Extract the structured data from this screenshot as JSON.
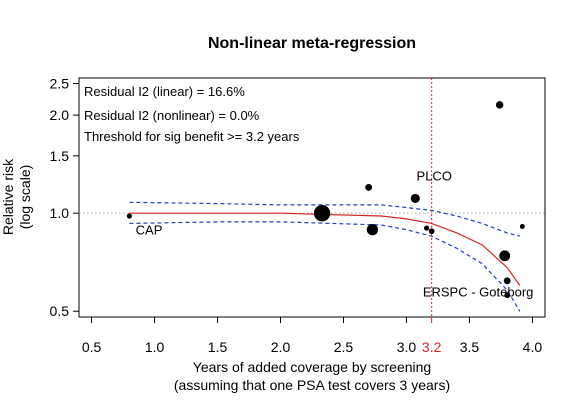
{
  "chart_data": {
    "type": "scatter",
    "title": "Non-linear meta-regression",
    "xlabel_lines": [
      "Years of added coverage by screening",
      "(assuming that one PSA test covers 3 years)"
    ],
    "ylabel_lines": [
      "Relative risk",
      "(log scale)"
    ],
    "y_scale": "log",
    "xlim": [
      0.4,
      4.1
    ],
    "ylim": [
      0.48,
      2.6
    ],
    "x_ticks": [
      {
        "value": 0.5,
        "label": "0.5"
      },
      {
        "value": 1.0,
        "label": "1.0"
      },
      {
        "value": 1.5,
        "label": "1.5"
      },
      {
        "value": 2.0,
        "label": "2.0"
      },
      {
        "value": 2.5,
        "label": "2.5"
      },
      {
        "value": 3.0,
        "label": "3.0"
      },
      {
        "value": 3.5,
        "label": "3.5"
      },
      {
        "value": 4.0,
        "label": "4.0"
      }
    ],
    "threshold_tick": {
      "value": 3.2,
      "label": "3.2",
      "color": "#d62728"
    },
    "y_ticks": [
      {
        "value": 0.5,
        "label": "0.5"
      },
      {
        "value": 1.0,
        "label": "1.0"
      },
      {
        "value": 1.5,
        "label": "1.5"
      },
      {
        "value": 2.0,
        "label": "2.0"
      },
      {
        "value": 2.5,
        "label": "2.5"
      }
    ],
    "reference_line": {
      "y": 1.0,
      "color": "#aaaaaa"
    },
    "threshold_line": {
      "x": 3.2,
      "color": "#d62728"
    },
    "annotations": [
      "Residual I2 (linear) = 16.6%",
      "Residual I2 (nonlinear) = 0.0%",
      "Threshold for sig benefit >= 3.2 years"
    ],
    "points": [
      {
        "x": 0.8,
        "y": 0.98,
        "weight": 1.0
      },
      {
        "x": 2.33,
        "y": 1.0,
        "weight": 5.0
      },
      {
        "x": 2.7,
        "y": 1.2,
        "weight": 1.6
      },
      {
        "x": 2.73,
        "y": 0.89,
        "weight": 3.2
      },
      {
        "x": 3.07,
        "y": 1.11,
        "weight": 2.4
      },
      {
        "x": 3.16,
        "y": 0.9,
        "weight": 1.0
      },
      {
        "x": 3.2,
        "y": 0.88,
        "weight": 1.2
      },
      {
        "x": 3.74,
        "y": 2.15,
        "weight": 1.8
      },
      {
        "x": 3.78,
        "y": 0.74,
        "weight": 3.0
      },
      {
        "x": 3.8,
        "y": 0.62,
        "weight": 1.6
      },
      {
        "x": 3.8,
        "y": 0.56,
        "weight": 1.2
      },
      {
        "x": 3.92,
        "y": 0.91,
        "weight": 0.9
      }
    ],
    "point_labels": [
      {
        "text": "CAP",
        "x": 0.85,
        "y": 0.86
      },
      {
        "text": "PLCO",
        "x": 3.08,
        "y": 1.26
      },
      {
        "text": "ERSPC - Goteborg",
        "x": 3.13,
        "y": 0.555
      }
    ],
    "fit": {
      "color": "#d62728",
      "x": [
        0.8,
        1.5,
        2.0,
        2.4,
        2.8,
        3.0,
        3.2,
        3.4,
        3.6,
        3.8,
        3.9
      ],
      "y": [
        1.0,
        1.0,
        1.0,
        0.99,
        0.98,
        0.96,
        0.93,
        0.87,
        0.8,
        0.68,
        0.6
      ]
    },
    "ci_upper": {
      "color": "#1f3fbf",
      "x": [
        0.8,
        1.5,
        2.0,
        2.4,
        2.8,
        3.0,
        3.2,
        3.4,
        3.6,
        3.8,
        3.9
      ],
      "y": [
        1.08,
        1.07,
        1.06,
        1.06,
        1.06,
        1.04,
        1.02,
        0.98,
        0.93,
        0.87,
        0.85
      ]
    },
    "ci_lower": {
      "color": "#1f3fbf",
      "x": [
        0.8,
        1.5,
        2.0,
        2.4,
        2.8,
        3.0,
        3.2,
        3.4,
        3.6,
        3.8,
        3.9
      ],
      "y": [
        0.93,
        0.94,
        0.94,
        0.93,
        0.92,
        0.89,
        0.85,
        0.78,
        0.7,
        0.58,
        0.5
      ]
    }
  }
}
